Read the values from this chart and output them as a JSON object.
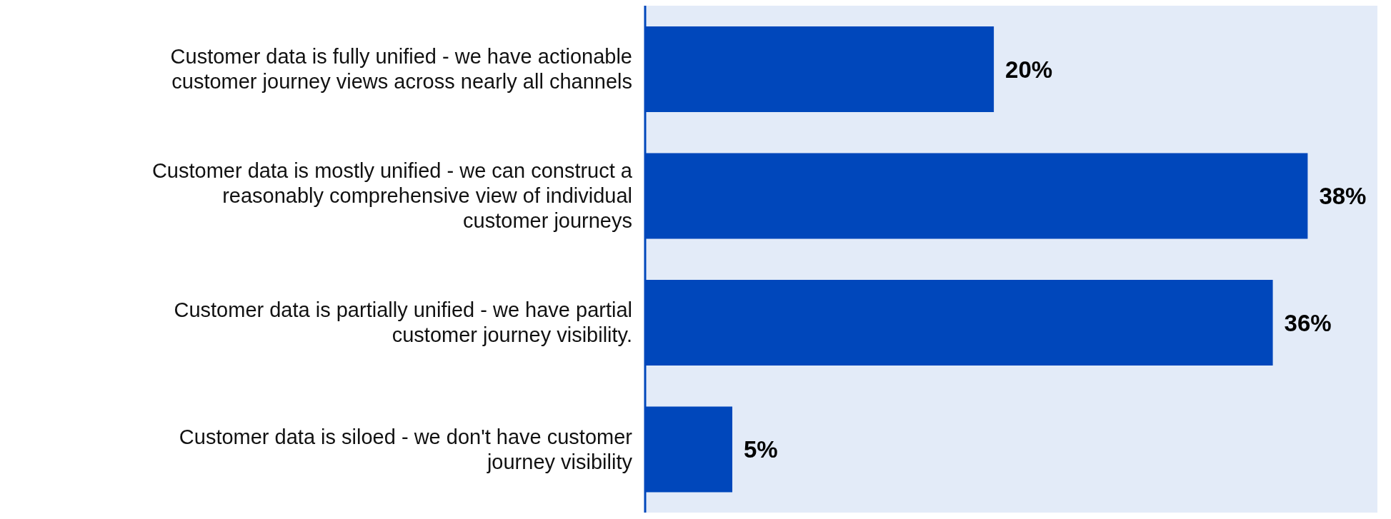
{
  "chart_data": {
    "type": "bar",
    "orientation": "horizontal",
    "categories": [
      "Customer data is fully unified - we have actionable customer journey views across nearly all channels",
      "Customer data is mostly unified - we can construct a reasonably comprehensive view of individual customer journeys",
      "Customer data is partially unified - we have partial customer journey visibility.",
      "Customer data is siloed - we don't have customer journey visibility"
    ],
    "values": [
      20,
      38,
      36,
      5
    ],
    "color": "#0047bb",
    "data_labels": true,
    "value_labels": [
      "20%",
      "38%",
      "36%",
      "5%"
    ],
    "xlim": [
      0,
      42
    ],
    "tick_labels": "y"
  }
}
